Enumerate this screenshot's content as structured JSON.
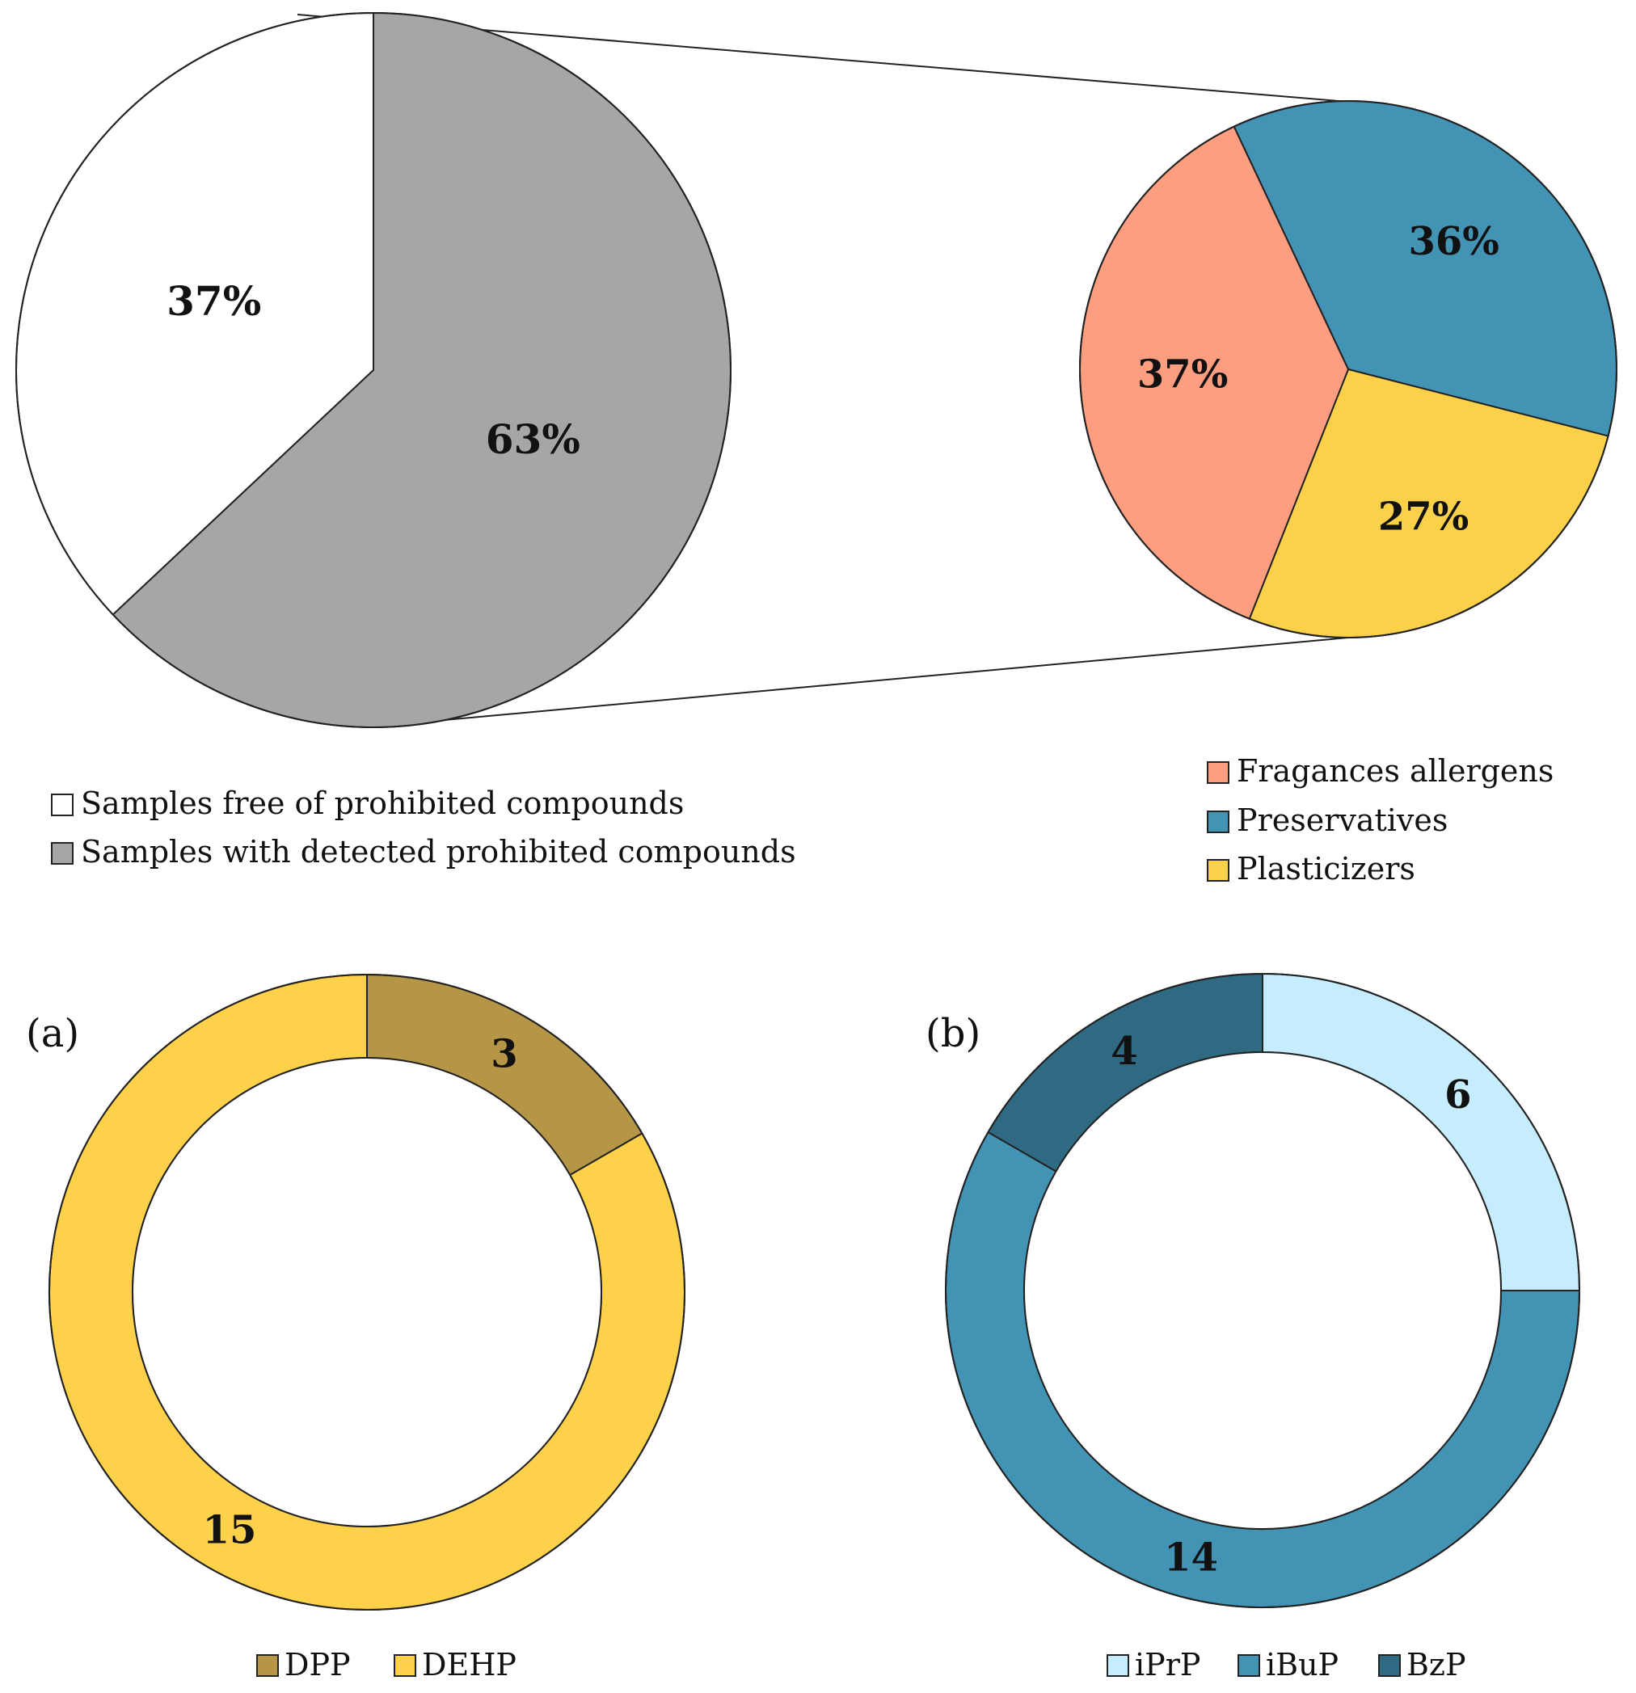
{
  "chart_data": [
    {
      "id": "overview",
      "type": "pie",
      "title": "",
      "slices": [
        {
          "label": "Samples free of prohibited compounds",
          "value": 37,
          "text": "37%",
          "color": "#ffffff"
        },
        {
          "label": "Samples with detected prohibited compounds",
          "value": 63,
          "text": "63%",
          "color": "#a6a6a6"
        }
      ]
    },
    {
      "id": "breakdown",
      "type": "pie",
      "title": "",
      "slices": [
        {
          "label": "Preservatives",
          "value": 36,
          "text": "36%",
          "color": "#4393b4"
        },
        {
          "label": "Plasticizers",
          "value": 27,
          "text": "27%",
          "color": "#fcd14a"
        },
        {
          "label": "Fragances allergens",
          "value": 37,
          "text": "37%",
          "color": "#fd9e80"
        }
      ],
      "legend_order": [
        "Fragances allergens",
        "Preservatives",
        "Plasticizers"
      ]
    },
    {
      "id": "plasticizers",
      "type": "donut",
      "panel_label": "(a)",
      "slices": [
        {
          "label": "DPP",
          "value": 3,
          "text": "3",
          "color": "#b59646"
        },
        {
          "label": "DEHP",
          "value": 15,
          "text": "15",
          "color": "#fdd14a"
        }
      ]
    },
    {
      "id": "preservatives",
      "type": "donut",
      "panel_label": "(b)",
      "slices": [
        {
          "label": "iPrP",
          "value": 6,
          "text": "6",
          "color": "#c6edfd",
          "label_color": "#111111"
        },
        {
          "label": "iBuP",
          "value": 14,
          "text": "14",
          "color": "#4393b4",
          "label_color": "#111111"
        },
        {
          "label": "BzP",
          "value": 4,
          "text": "4",
          "color": "#306a82",
          "label_color": "#ffffff"
        }
      ]
    }
  ]
}
